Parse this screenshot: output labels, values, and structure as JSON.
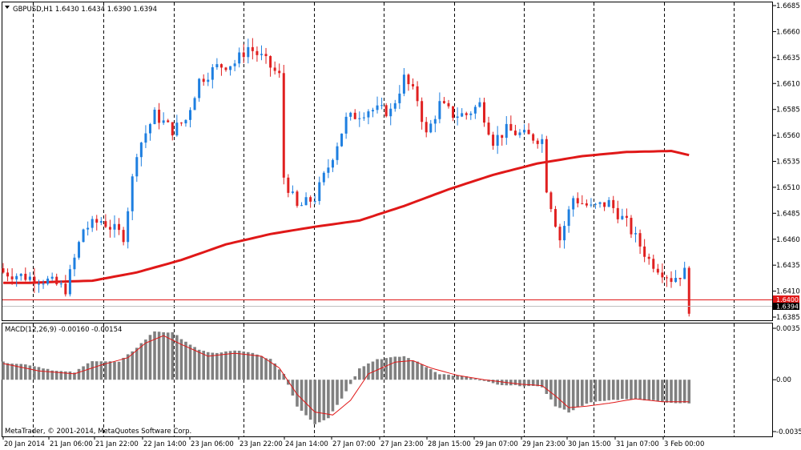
{
  "window": {
    "symbol_header": "GBPUSD,H1  1.6430 1.6434 1.6390 1.6394",
    "macd_header": "MACD(12,26,9) -0.00160 -0.00154",
    "copyright": "MetaTrader, © 2001-2014, MetaQuotes Software Corp."
  },
  "price_axis": {
    "labels": [
      "1.6685",
      "1.6660",
      "1.6635",
      "1.6610",
      "1.6585",
      "1.6560",
      "1.6535",
      "1.6510",
      "1.6485",
      "1.6460",
      "1.6435",
      "1.6410",
      "1.6385"
    ],
    "current_red_label": "1.6400",
    "current_label": "1.6394"
  },
  "macd_axis": {
    "labels": [
      "0.0035",
      "0.00",
      "-0.00353"
    ]
  },
  "time_axis": {
    "labels": [
      "20 Jan 2014",
      "21 Jan 06:00",
      "21 Jan 22:00",
      "22 Jan 14:00",
      "23 Jan 06:00",
      "23 Jan 22:00",
      "24 Jan 14:00",
      "27 Jan 07:00",
      "27 Jan 23:00",
      "28 Jan 15:00",
      "29 Jan 07:00",
      "29 Jan 23:00",
      "30 Jan 15:00",
      "31 Jan 07:00",
      "3 Feb 00:00"
    ]
  },
  "colors": {
    "bull": "#1e7fe0",
    "bear": "#e02020",
    "ma": "#e01818",
    "macd_hist": "#808080",
    "macd_signal": "#e01818",
    "grid": "#000000"
  },
  "chart_data": [
    {
      "type": "candlestick",
      "title": "GBPUSD,H1",
      "ylim": [
        1.6385,
        1.6685
      ],
      "moving_average": [
        [
          0,
          1.6418
        ],
        [
          6,
          1.6418
        ],
        [
          12,
          1.6419
        ],
        [
          20,
          1.642
        ],
        [
          30,
          1.6428
        ],
        [
          40,
          1.644
        ],
        [
          50,
          1.6455
        ],
        [
          60,
          1.6465
        ],
        [
          70,
          1.6472
        ],
        [
          80,
          1.6478
        ],
        [
          90,
          1.6492
        ],
        [
          100,
          1.6508
        ],
        [
          110,
          1.6522
        ],
        [
          120,
          1.6533
        ],
        [
          130,
          1.654
        ],
        [
          140,
          1.6544
        ],
        [
          150,
          1.6545
        ],
        [
          154,
          1.6541
        ]
      ],
      "anchors": [
        [
          0,
          1.6428
        ],
        [
          10,
          1.642
        ],
        [
          14,
          1.6412
        ],
        [
          18,
          1.647
        ],
        [
          22,
          1.6478
        ],
        [
          27,
          1.6463
        ],
        [
          30,
          1.6545
        ],
        [
          34,
          1.658
        ],
        [
          38,
          1.6565
        ],
        [
          41,
          1.6575
        ],
        [
          44,
          1.6613
        ],
        [
          48,
          1.6626
        ],
        [
          52,
          1.663
        ],
        [
          55,
          1.6645
        ],
        [
          58,
          1.6635
        ],
        [
          62,
          1.6617
        ],
        [
          63,
          1.652
        ],
        [
          66,
          1.649
        ],
        [
          70,
          1.65
        ],
        [
          73,
          1.653
        ],
        [
          77,
          1.6575
        ],
        [
          82,
          1.6585
        ],
        [
          87,
          1.6583
        ],
        [
          90,
          1.6615
        ],
        [
          93,
          1.6595
        ],
        [
          95,
          1.656
        ],
        [
          98,
          1.659
        ],
        [
          101,
          1.658
        ],
        [
          104,
          1.658
        ],
        [
          107,
          1.659
        ],
        [
          110,
          1.6555
        ],
        [
          113,
          1.6565
        ],
        [
          117,
          1.656
        ],
        [
          121,
          1.6556
        ],
        [
          122,
          1.651
        ],
        [
          125,
          1.646
        ],
        [
          128,
          1.65
        ],
        [
          132,
          1.649
        ],
        [
          136,
          1.6495
        ],
        [
          140,
          1.6475
        ],
        [
          145,
          1.644
        ],
        [
          150,
          1.6422
        ],
        [
          153,
          1.6428
        ],
        [
          154,
          1.6394
        ]
      ]
    },
    {
      "type": "macd",
      "title": "MACD(12,26,9)",
      "ylim": [
        -0.00353,
        0.0035
      ],
      "hist_anchors": [
        [
          0,
          0.0012
        ],
        [
          6,
          0.001
        ],
        [
          12,
          0.0006
        ],
        [
          16,
          0.0005
        ],
        [
          20,
          0.0013
        ],
        [
          26,
          0.0012
        ],
        [
          30,
          0.0022
        ],
        [
          34,
          0.0033
        ],
        [
          38,
          0.0032
        ],
        [
          44,
          0.002
        ],
        [
          48,
          0.0018
        ],
        [
          52,
          0.002
        ],
        [
          56,
          0.0018
        ],
        [
          60,
          0.0014
        ],
        [
          63,
          0.0004
        ],
        [
          66,
          -0.0018
        ],
        [
          70,
          -0.003
        ],
        [
          73,
          -0.0026
        ],
        [
          77,
          -0.0008
        ],
        [
          80,
          0.0008
        ],
        [
          84,
          0.0014
        ],
        [
          90,
          0.0016
        ],
        [
          93,
          0.0012
        ],
        [
          98,
          0.0004
        ],
        [
          104,
          0.0002
        ],
        [
          108,
          -0.0001
        ],
        [
          112,
          -0.0004
        ],
        [
          116,
          -0.0004
        ],
        [
          121,
          -0.0005
        ],
        [
          124,
          -0.0018
        ],
        [
          127,
          -0.0022
        ],
        [
          131,
          -0.0016
        ],
        [
          136,
          -0.0014
        ],
        [
          140,
          -0.0013
        ],
        [
          146,
          -0.0014
        ],
        [
          150,
          -0.0016
        ],
        [
          154,
          -0.0016
        ]
      ],
      "signal_anchors": [
        [
          0,
          0.0011
        ],
        [
          8,
          0.0006
        ],
        [
          16,
          0.0004
        ],
        [
          22,
          0.001
        ],
        [
          28,
          0.0015
        ],
        [
          32,
          0.0025
        ],
        [
          36,
          0.003
        ],
        [
          40,
          0.0024
        ],
        [
          46,
          0.0016
        ],
        [
          52,
          0.0018
        ],
        [
          58,
          0.0016
        ],
        [
          62,
          0.0008
        ],
        [
          66,
          -0.001
        ],
        [
          70,
          -0.0022
        ],
        [
          74,
          -0.0024
        ],
        [
          78,
          -0.0014
        ],
        [
          82,
          0.0004
        ],
        [
          88,
          0.0012
        ],
        [
          92,
          0.0013
        ],
        [
          96,
          0.0008
        ],
        [
          102,
          0.0003
        ],
        [
          108,
          0.0
        ],
        [
          116,
          -0.0003
        ],
        [
          121,
          -0.0004
        ],
        [
          124,
          -0.0011
        ],
        [
          127,
          -0.0019
        ],
        [
          131,
          -0.0018
        ],
        [
          136,
          -0.0016
        ],
        [
          142,
          -0.0013
        ],
        [
          148,
          -0.0015
        ],
        [
          154,
          -0.0015
        ]
      ]
    }
  ]
}
